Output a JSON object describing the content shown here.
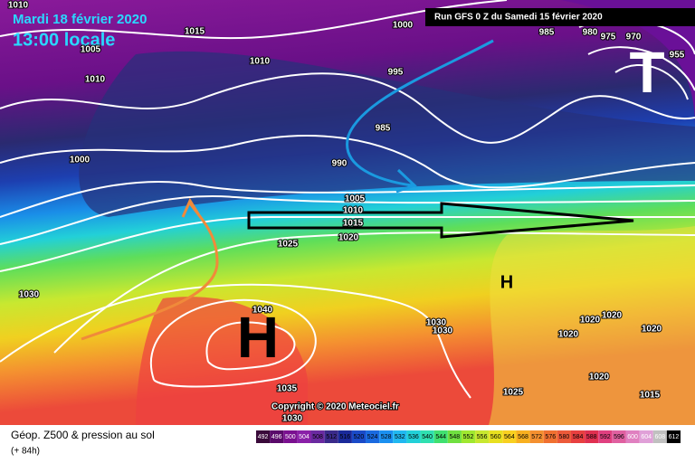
{
  "header": {
    "date": "Mardi 18 février 2020",
    "time": "13:00 locale",
    "run": "Run GFS 0 Z du Samedi 15 février 2020"
  },
  "map": {
    "isobar_labels": [
      1010,
      1015,
      1005,
      1010,
      1010,
      1000,
      995,
      985,
      990,
      1000,
      1005,
      1010,
      1015,
      1020,
      1025,
      1030,
      1040,
      1035,
      1030,
      1030,
      1030,
      1025,
      1020,
      1020,
      1020,
      1020,
      1020,
      1015,
      985,
      980,
      975,
      970,
      955
    ],
    "pressure_centers": [
      "H",
      "T",
      "H"
    ],
    "copyright": "Copyright © 2020 Meteociel.fr"
  },
  "footer": {
    "title": "Géop. Z500 & pression au sol",
    "lead": "(+ 84h)",
    "scale": [
      492,
      496,
      500,
      504,
      508,
      512,
      516,
      520,
      524,
      528,
      532,
      536,
      540,
      544,
      548,
      552,
      556,
      560,
      564,
      568,
      572,
      576,
      580,
      584,
      588,
      592,
      596,
      600,
      604,
      608,
      612
    ]
  }
}
